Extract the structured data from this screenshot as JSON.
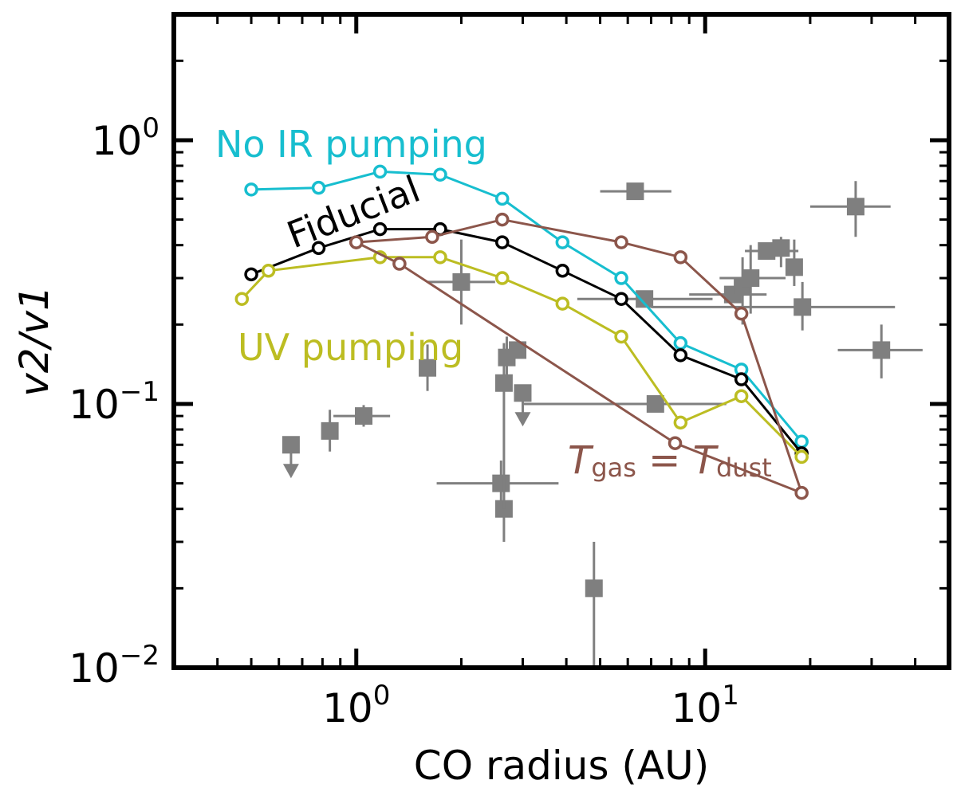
{
  "chart_data": {
    "type": "scatter",
    "xlabel": "CO radius (AU)",
    "ylabel": "v2/v1",
    "xscale": "log",
    "yscale": "log",
    "xlim": [
      0.3,
      50
    ],
    "ylim": [
      0.01,
      3
    ],
    "x_ticks": [
      {
        "value": 1,
        "base": "10",
        "exp": "0"
      },
      {
        "value": 10,
        "base": "10",
        "exp": "1"
      }
    ],
    "y_ticks": [
      {
        "value": 0.01,
        "base": "10",
        "exp": "−2"
      },
      {
        "value": 0.1,
        "base": "10",
        "exp": "−1"
      },
      {
        "value": 1,
        "base": "10",
        "exp": "0"
      }
    ],
    "series": [
      {
        "name": "No IR pumping",
        "color": "#17becf",
        "x": [
          0.5,
          0.78,
          1.17,
          1.74,
          2.62,
          3.9,
          5.75,
          8.5,
          12.7,
          18.9
        ],
        "y": [
          0.65,
          0.66,
          0.76,
          0.74,
          0.6,
          0.41,
          0.3,
          0.17,
          0.135,
          0.072
        ]
      },
      {
        "name": "Fiducial",
        "color": "#000000",
        "x": [
          0.5,
          0.78,
          1.17,
          1.74,
          2.62,
          3.9,
          5.75,
          8.5,
          12.7,
          18.9
        ],
        "y": [
          0.31,
          0.39,
          0.46,
          0.46,
          0.41,
          0.32,
          0.25,
          0.153,
          0.124,
          0.065
        ]
      },
      {
        "name": "UV pumping",
        "color": "#bcbd22",
        "x": [
          0.47,
          0.56,
          1.17,
          1.74,
          2.62,
          3.9,
          5.75,
          8.5,
          12.7,
          18.9
        ],
        "y": [
          0.25,
          0.32,
          0.36,
          0.36,
          0.3,
          0.24,
          0.18,
          0.085,
          0.107,
          0.063
        ]
      },
      {
        "name": "Tgas = Tdust",
        "color": "#8c564b",
        "x": [
          1.0,
          1.65,
          2.62,
          5.75,
          8.5,
          12.7,
          18.9,
          8.2,
          1.33,
          1.0
        ],
        "y": [
          0.41,
          0.43,
          0.5,
          0.41,
          0.36,
          0.22,
          0.046,
          0.071,
          0.34,
          0.41
        ]
      }
    ],
    "observations": {
      "color": "#7f7f7f",
      "points": [
        {
          "x": 0.65,
          "y": 0.07,
          "upper_limit": true
        },
        {
          "x": 0.84,
          "y": 0.079,
          "ylo": 0.066,
          "yhi": 0.095
        },
        {
          "x": 1.05,
          "y": 0.09,
          "xlo": 0.86,
          "xhi": 1.25,
          "ylo": 0.082,
          "yhi": 0.099
        },
        {
          "x": 1.6,
          "y": 0.137,
          "ylo": 0.112,
          "yhi": 0.168
        },
        {
          "x": 2.0,
          "y": 0.29,
          "xlo": 1.6,
          "xhi": 2.5,
          "ylo": 0.2,
          "yhi": 0.42
        },
        {
          "x": 2.6,
          "y": 0.05,
          "xlo": 1.7,
          "xhi": 3.8,
          "ylo": 0.041,
          "yhi": 0.061
        },
        {
          "x": 2.65,
          "y": 0.04,
          "ylo": 0.03,
          "yhi": 0.05
        },
        {
          "x": 2.65,
          "y": 0.12,
          "ylo": 0.04,
          "yhi": 0.17
        },
        {
          "x": 2.7,
          "y": 0.15,
          "ylo": 0.125,
          "yhi": 0.18
        },
        {
          "x": 2.9,
          "y": 0.16
        },
        {
          "x": 3.0,
          "y": 0.11,
          "upper_limit": true
        },
        {
          "x": 4.8,
          "y": 0.02,
          "ylo": 0.01,
          "yhi": 0.03
        },
        {
          "x": 6.3,
          "y": 0.64,
          "xlo": 5.0,
          "xhi": 8.0
        },
        {
          "x": 6.7,
          "y": 0.25,
          "xlo": 4.3,
          "xhi": 10.5
        },
        {
          "x": 7.2,
          "y": 0.1,
          "xlo": 3.0,
          "xhi": 11.5
        },
        {
          "x": 12.0,
          "y": 0.26,
          "xlo": 9.0,
          "xhi": 15.0
        },
        {
          "x": 12.8,
          "y": 0.28,
          "ylo": 0.2,
          "yhi": 0.36
        },
        {
          "x": 13.5,
          "y": 0.3,
          "xlo": 11.0,
          "xhi": 17.0,
          "ylo": 0.22,
          "yhi": 0.4
        },
        {
          "x": 15.0,
          "y": 0.38,
          "xlo": 13.0,
          "xhi": 18.5
        },
        {
          "x": 16.5,
          "y": 0.39,
          "ylo": 0.33,
          "yhi": 0.43
        },
        {
          "x": 18.0,
          "y": 0.33,
          "ylo": 0.28,
          "yhi": 0.42
        },
        {
          "x": 19.0,
          "y": 0.233,
          "xlo": 7.0,
          "xhi": 35.0,
          "ylo": 0.19,
          "yhi": 0.29
        },
        {
          "x": 27.0,
          "y": 0.56,
          "xlo": 20.0,
          "xhi": 34.0,
          "ylo": 0.43,
          "yhi": 0.7
        },
        {
          "x": 32.0,
          "y": 0.16,
          "xlo": 24.0,
          "xhi": 42.0,
          "ylo": 0.125,
          "yhi": 0.2
        }
      ]
    },
    "annotations": [
      {
        "id": "no-ir",
        "text": "No IR pumping",
        "color": "#17becf"
      },
      {
        "id": "fiducial",
        "text": "Fiducial",
        "color": "#000000"
      },
      {
        "id": "uv",
        "text": "UV pumping",
        "color": "#bcbd22"
      },
      {
        "id": "tgas-tdust",
        "text": "T_gas = T_dust",
        "color": "#8c564b",
        "T1": "T",
        "sub1": "gas",
        "eq": " = ",
        "T2": "T",
        "sub2": "dust"
      }
    ]
  }
}
